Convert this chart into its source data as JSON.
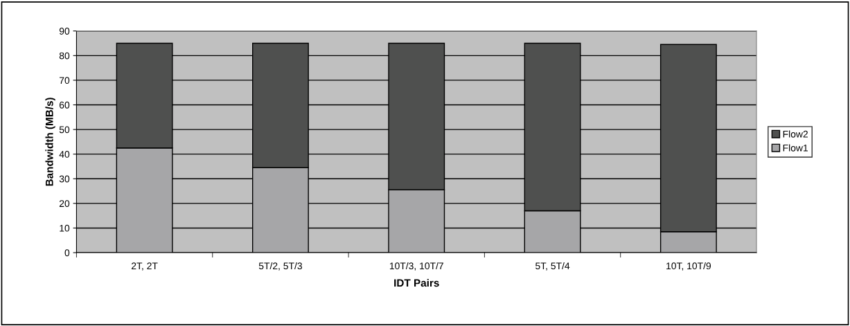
{
  "chart_data": {
    "type": "bar",
    "stacked": true,
    "xlabel": "IDT Pairs",
    "ylabel": "Bandwidth (MB/s)",
    "categories": [
      "2T, 2T",
      "5T/2, 5T/3",
      "10T/3, 10T/7",
      "5T, 5T/4",
      "10T, 10T/9"
    ],
    "series": [
      {
        "name": "Flow1",
        "color": "#a6a6a8",
        "values": [
          42.5,
          34.5,
          25.5,
          17,
          8.5
        ]
      },
      {
        "name": "Flow2",
        "color": "#4f504f",
        "values": [
          42.5,
          50.5,
          59.5,
          68,
          76
        ]
      }
    ],
    "ylim": [
      0,
      90
    ],
    "yticks": [
      0,
      10,
      20,
      30,
      40,
      50,
      60,
      70,
      80,
      90
    ],
    "grid": "y",
    "legend": "right"
  }
}
